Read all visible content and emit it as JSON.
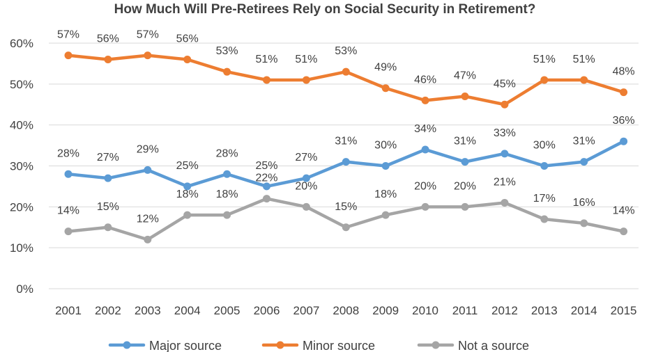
{
  "chart_data": {
    "type": "line",
    "title": "How Much Will Pre-Retirees Rely on Social Security in Retirement?",
    "xlabel": "",
    "ylabel": "",
    "categories": [
      "2001",
      "2002",
      "2003",
      "2004",
      "2005",
      "2006",
      "2007",
      "2008",
      "2009",
      "2010",
      "2011",
      "2012",
      "2013",
      "2014",
      "2015"
    ],
    "y_ticks": [
      "0%",
      "10%",
      "20%",
      "30%",
      "40%",
      "50%",
      "60%"
    ],
    "ylim": [
      0,
      60
    ],
    "grid": true,
    "legend_position": "bottom",
    "series": [
      {
        "name": "Major source",
        "color": "#5b9bd5",
        "values": [
          28,
          27,
          29,
          25,
          28,
          25,
          27,
          31,
          30,
          34,
          31,
          33,
          30,
          31,
          36
        ],
        "labels": [
          "28%",
          "27%",
          "29%",
          "25%",
          "28%",
          "25%",
          "27%",
          "31%",
          "30%",
          "34%",
          "31%",
          "33%",
          "30%",
          "31%",
          "36%"
        ]
      },
      {
        "name": "Minor source",
        "color": "#ed7d31",
        "values": [
          57,
          56,
          57,
          56,
          53,
          51,
          51,
          53,
          49,
          46,
          47,
          45,
          51,
          51,
          48
        ],
        "labels": [
          "57%",
          "56%",
          "57%",
          "56%",
          "53%",
          "51%",
          "51%",
          "53%",
          "49%",
          "46%",
          "47%",
          "45%",
          "51%",
          "51%",
          "48%"
        ]
      },
      {
        "name": "Not a source",
        "color": "#a5a5a5",
        "values": [
          14,
          15,
          12,
          18,
          18,
          22,
          20,
          15,
          18,
          20,
          20,
          21,
          17,
          16,
          14
        ],
        "labels": [
          "14%",
          "15%",
          "12%",
          "18%",
          "18%",
          "22%",
          "20%",
          "15%",
          "18%",
          "20%",
          "20%",
          "21%",
          "17%",
          "16%",
          "14%"
        ]
      }
    ]
  }
}
